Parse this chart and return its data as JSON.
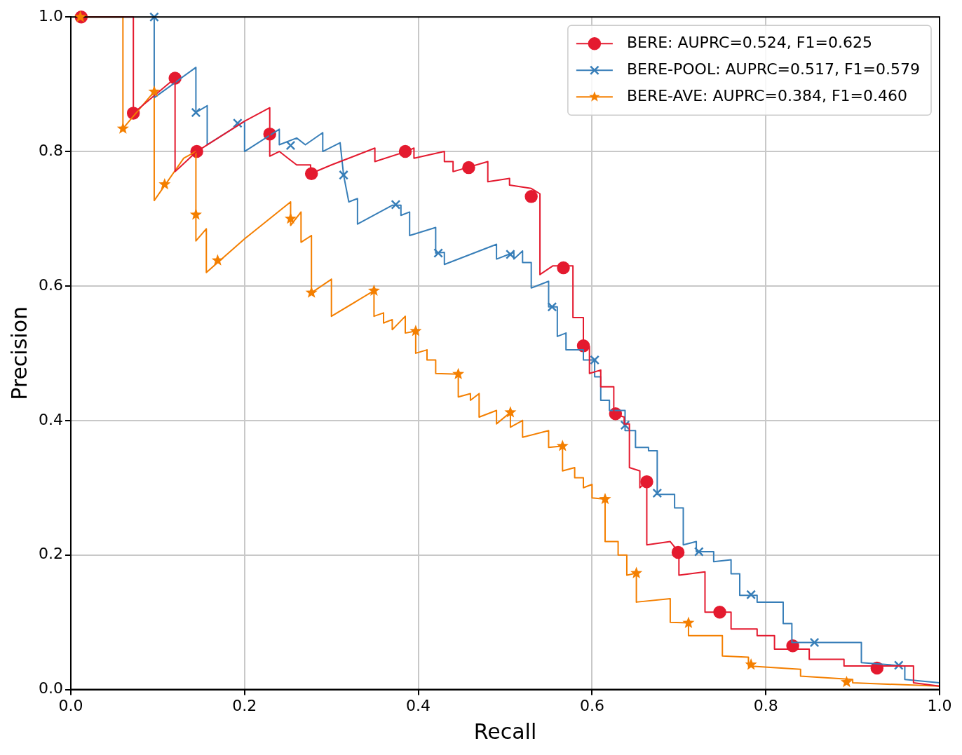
{
  "chart_data": {
    "type": "line",
    "xlabel": "Recall",
    "ylabel": "Precision",
    "xlim": [
      0,
      1
    ],
    "ylim": [
      0,
      1
    ],
    "xticks": [
      {
        "value": 0,
        "label": "0.0"
      },
      {
        "value": 0.2,
        "label": "0.2"
      },
      {
        "value": 0.4,
        "label": "0.4"
      },
      {
        "value": 0.6,
        "label": "0.6"
      },
      {
        "value": 0.8,
        "label": "0.8"
      },
      {
        "value": 1,
        "label": "1.0"
      }
    ],
    "yticks": [
      {
        "value": 0,
        "label": "0.0"
      },
      {
        "value": 0.2,
        "label": "0.2"
      },
      {
        "value": 0.4,
        "label": "0.4"
      },
      {
        "value": 0.6,
        "label": "0.6"
      },
      {
        "value": 0.8,
        "label": "0.8"
      },
      {
        "value": 1,
        "label": "1.0"
      }
    ],
    "grid": true,
    "legend": "top right",
    "line_style": "solid",
    "series": [
      {
        "type": "line",
        "color": "#e41a2f",
        "marker": "none",
        "x": [
          0.012,
          0.072,
          0.072,
          0.12,
          0.12,
          0.145,
          0.2,
          0.229,
          0.229,
          0.24,
          0.25,
          0.26,
          0.276,
          0.276,
          0.3,
          0.35,
          0.35,
          0.386,
          0.395,
          0.395,
          0.43,
          0.43,
          0.44,
          0.44,
          0.48,
          0.48,
          0.505,
          0.505,
          0.53,
          0.54,
          0.54,
          0.555,
          0.578,
          0.578,
          0.59,
          0.59,
          0.597,
          0.597,
          0.61,
          0.61,
          0.625,
          0.625,
          0.637,
          0.637,
          0.643,
          0.643,
          0.655,
          0.655,
          0.663,
          0.663,
          0.69,
          0.7,
          0.7,
          0.73,
          0.73,
          0.76,
          0.76,
          0.79,
          0.79,
          0.81,
          0.81,
          0.85,
          0.85,
          0.89,
          0.89,
          0.97,
          0.97,
          1.0
        ],
        "values": [
          1,
          1,
          0.857,
          0.909,
          0.77,
          0.8,
          0.845,
          0.865,
          0.793,
          0.8,
          0.79,
          0.78,
          0.78,
          0.767,
          0.78,
          0.805,
          0.785,
          0.8,
          0.805,
          0.79,
          0.8,
          0.785,
          0.785,
          0.77,
          0.785,
          0.755,
          0.76,
          0.75,
          0.745,
          0.737,
          0.617,
          0.63,
          0.63,
          0.553,
          0.553,
          0.51,
          0.51,
          0.47,
          0.475,
          0.45,
          0.45,
          0.41,
          0.405,
          0.395,
          0.395,
          0.33,
          0.325,
          0.3,
          0.31,
          0.215,
          0.22,
          0.204,
          0.17,
          0.175,
          0.115,
          0.115,
          0.09,
          0.09,
          0.08,
          0.08,
          0.06,
          0.06,
          0.045,
          0.045,
          0.035,
          0.035,
          0.01,
          0.005
        ]
      },
      {
        "type": "line",
        "color": "#377eb8",
        "marker": "none",
        "x": [
          0.096,
          0.096,
          0.144,
          0.144,
          0.157,
          0.157,
          0.2,
          0.2,
          0.24,
          0.24,
          0.26,
          0.27,
          0.29,
          0.29,
          0.31,
          0.314,
          0.32,
          0.33,
          0.33,
          0.37,
          0.38,
          0.38,
          0.39,
          0.39,
          0.42,
          0.42,
          0.43,
          0.43,
          0.49,
          0.49,
          0.51,
          0.51,
          0.52,
          0.52,
          0.53,
          0.53,
          0.55,
          0.55,
          0.56,
          0.56,
          0.57,
          0.57,
          0.59,
          0.59,
          0.603,
          0.603,
          0.61,
          0.61,
          0.62,
          0.62,
          0.638,
          0.638,
          0.65,
          0.65,
          0.665,
          0.665,
          0.675,
          0.675,
          0.695,
          0.695,
          0.705,
          0.705,
          0.72,
          0.72,
          0.74,
          0.74,
          0.76,
          0.76,
          0.77,
          0.77,
          0.79,
          0.79,
          0.82,
          0.82,
          0.83,
          0.83,
          0.91,
          0.91,
          0.96,
          0.96,
          1.0
        ],
        "values": [
          1,
          0.88,
          0.925,
          0.858,
          0.868,
          0.81,
          0.845,
          0.8,
          0.833,
          0.81,
          0.82,
          0.81,
          0.828,
          0.8,
          0.813,
          0.765,
          0.725,
          0.73,
          0.692,
          0.72,
          0.72,
          0.705,
          0.71,
          0.675,
          0.687,
          0.649,
          0.65,
          0.632,
          0.662,
          0.64,
          0.65,
          0.64,
          0.652,
          0.635,
          0.635,
          0.597,
          0.607,
          0.569,
          0.569,
          0.525,
          0.53,
          0.505,
          0.505,
          0.49,
          0.49,
          0.465,
          0.465,
          0.43,
          0.43,
          0.415,
          0.415,
          0.385,
          0.385,
          0.36,
          0.36,
          0.355,
          0.355,
          0.29,
          0.29,
          0.27,
          0.27,
          0.215,
          0.22,
          0.205,
          0.205,
          0.19,
          0.193,
          0.172,
          0.172,
          0.14,
          0.14,
          0.13,
          0.13,
          0.098,
          0.098,
          0.07,
          0.07,
          0.04,
          0.035,
          0.015,
          0.01
        ]
      },
      {
        "type": "line",
        "color": "#f47f00",
        "marker": "none",
        "x": [
          0.011,
          0.06,
          0.06,
          0.096,
          0.096,
          0.13,
          0.144,
          0.144,
          0.156,
          0.156,
          0.2,
          0.253,
          0.253,
          0.265,
          0.265,
          0.277,
          0.277,
          0.3,
          0.3,
          0.349,
          0.349,
          0.36,
          0.36,
          0.37,
          0.37,
          0.385,
          0.385,
          0.397,
          0.397,
          0.41,
          0.41,
          0.42,
          0.42,
          0.446,
          0.446,
          0.46,
          0.46,
          0.47,
          0.47,
          0.49,
          0.49,
          0.506,
          0.506,
          0.52,
          0.52,
          0.55,
          0.55,
          0.566,
          0.566,
          0.58,
          0.58,
          0.59,
          0.59,
          0.6,
          0.6,
          0.615,
          0.615,
          0.63,
          0.63,
          0.64,
          0.64,
          0.651,
          0.651,
          0.69,
          0.69,
          0.711,
          0.711,
          0.75,
          0.75,
          0.78,
          0.78,
          0.84,
          0.84,
          0.9,
          0.9,
          1.0
        ],
        "values": [
          1,
          1,
          0.834,
          0.889,
          0.727,
          0.79,
          0.8,
          0.667,
          0.685,
          0.62,
          0.67,
          0.725,
          0.69,
          0.71,
          0.665,
          0.675,
          0.59,
          0.61,
          0.555,
          0.593,
          0.555,
          0.56,
          0.545,
          0.55,
          0.535,
          0.555,
          0.53,
          0.533,
          0.5,
          0.505,
          0.49,
          0.49,
          0.47,
          0.469,
          0.435,
          0.44,
          0.43,
          0.44,
          0.405,
          0.415,
          0.395,
          0.412,
          0.39,
          0.4,
          0.375,
          0.385,
          0.36,
          0.362,
          0.325,
          0.33,
          0.315,
          0.315,
          0.3,
          0.305,
          0.285,
          0.283,
          0.22,
          0.22,
          0.2,
          0.2,
          0.17,
          0.173,
          0.13,
          0.135,
          0.1,
          0.099,
          0.08,
          0.08,
          0.05,
          0.048,
          0.035,
          0.03,
          0.02,
          0.015,
          0.01,
          0.005
        ]
      },
      {
        "type": "scatter",
        "name": "BERE: AUPRC=0.524, F1=0.625",
        "color": "#e41a2f",
        "marker": "circle",
        "x": [
          0.012,
          0.072,
          0.12,
          0.145,
          0.229,
          0.277,
          0.385,
          0.458,
          0.53,
          0.567,
          0.59,
          0.627,
          0.663,
          0.699,
          0.747,
          0.831,
          0.928
        ],
        "values": [
          1,
          0.857,
          0.909,
          0.8,
          0.826,
          0.767,
          0.8,
          0.776,
          0.733,
          0.627,
          0.511,
          0.41,
          0.309,
          0.204,
          0.115,
          0.065,
          0.032
        ]
      },
      {
        "type": "scatter",
        "name": "BERE-POOL: AUPRC=0.517, F1=0.579",
        "color": "#377eb8",
        "marker": "cross",
        "x": [
          0.096,
          0.144,
          0.192,
          0.253,
          0.314,
          0.374,
          0.423,
          0.506,
          0.554,
          0.603,
          0.638,
          0.675,
          0.723,
          0.783,
          0.856,
          0.953
        ],
        "values": [
          1,
          0.858,
          0.842,
          0.809,
          0.765,
          0.721,
          0.649,
          0.647,
          0.569,
          0.49,
          0.393,
          0.292,
          0.205,
          0.141,
          0.07,
          0.036
        ]
      },
      {
        "type": "scatter",
        "name": "BERE-AVE: AUPRC=0.384, F1=0.460",
        "color": "#f47f00",
        "marker": "star",
        "x": [
          0.011,
          0.06,
          0.096,
          0.108,
          0.144,
          0.169,
          0.253,
          0.277,
          0.349,
          0.397,
          0.446,
          0.506,
          0.566,
          0.615,
          0.651,
          0.711,
          0.783,
          0.893
        ],
        "values": [
          1,
          0.834,
          0.889,
          0.751,
          0.706,
          0.638,
          0.7,
          0.59,
          0.593,
          0.533,
          0.469,
          0.412,
          0.362,
          0.283,
          0.173,
          0.099,
          0.037,
          0.011
        ]
      }
    ]
  }
}
